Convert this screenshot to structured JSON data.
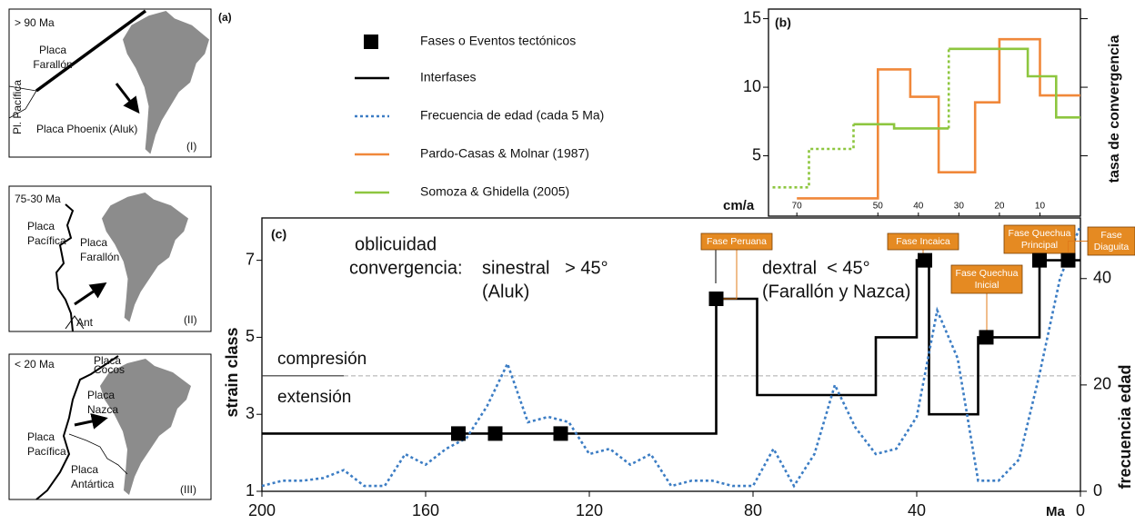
{
  "maps": {
    "label": "(a)",
    "frames": [
      {
        "age": "> 90 Ma",
        "plates": [
          [
            "Placa",
            "Farallón"
          ],
          [
            "Pl. Pacífica"
          ],
          [
            "Placa Phoenix (Aluk)"
          ]
        ],
        "numeral": "(I)"
      },
      {
        "age": "75-30 Ma",
        "plates": [
          [
            "Placa",
            "Pacífica"
          ],
          [
            "Placa",
            "Farallón"
          ],
          [
            "Ant"
          ]
        ],
        "numeral": "(II)"
      },
      {
        "age": "< 20 Ma",
        "plates": [
          [
            "Placa",
            "Cocos"
          ],
          [
            "Placa",
            "Nazca"
          ],
          [
            "Placa",
            "Pacífica"
          ],
          [
            "Placa",
            "Antártica"
          ]
        ],
        "numeral": "(III)"
      }
    ]
  },
  "chart_data": [
    {
      "type": "line",
      "label": "(b)",
      "y_label": "tasa de convergencia",
      "y_unit": "cm/a",
      "xlim": [
        77,
        0
      ],
      "xticks": [
        70,
        50,
        40,
        30,
        20,
        10
      ],
      "ylim": [
        0.6,
        15.7
      ],
      "yticks": [
        5,
        10,
        15
      ],
      "series": [
        {
          "name": "Pardo-Casas & Molnar (1987)",
          "color": "#f0883a",
          "x": [
            70,
            50,
            50,
            42,
            42,
            35,
            35,
            26,
            26,
            20,
            20,
            10,
            10,
            0
          ],
          "values": [
            1.9,
            1.9,
            11.3,
            11.3,
            9.3,
            9.3,
            3.8,
            3.8,
            8.9,
            8.9,
            13.5,
            13.5,
            9.4,
            9.4
          ]
        },
        {
          "name": "Somoza & Ghidella (2005)",
          "color": "#8dc63f",
          "x": [
            56,
            46,
            46,
            32.5,
            32.5,
            32.5,
            13,
            13,
            6,
            6,
            0
          ],
          "values": [
            7.3,
            7.3,
            7.0,
            7.0,
            null,
            12.8,
            12.8,
            10.8,
            10.8,
            7.8,
            7.8
          ]
        },
        {
          "color": "#8dc63f",
          "linestyle": "dotted",
          "x": [
            76,
            67,
            67,
            56,
            56,
            32.5,
            32.5,
            32.5
          ],
          "values": [
            2.7,
            2.7,
            5.5,
            5.5,
            7.3,
            null,
            7.0,
            12.8
          ]
        }
      ]
    },
    {
      "type": "line",
      "label": "(c)",
      "y_label": "strain class",
      "y2_label": "frecuencia edad",
      "x_label": "Ma",
      "xlim": [
        200,
        0
      ],
      "xticks": [
        200,
        160,
        120,
        80,
        40,
        0
      ],
      "ylim": [
        1,
        8.1
      ],
      "yticks": [
        1,
        3,
        5,
        7
      ],
      "y2lim": [
        0,
        51.4
      ],
      "y2ticks": [
        0,
        20,
        40
      ],
      "reference_line": 4,
      "annotations": [
        "oblicuidad",
        "convergencia:",
        "sinestral   > 45°",
        "(Aluk)",
        "dextral  < 45°",
        "(Farallón y Nazca)",
        "compresión",
        "extensión"
      ],
      "series": [
        {
          "name": "Interfases",
          "color": "#000000",
          "x": [
            200,
            89,
            89,
            79,
            79,
            50,
            50,
            40,
            40,
            37,
            37,
            25,
            25,
            10,
            10,
            0
          ],
          "values": [
            2.5,
            2.5,
            6,
            6,
            3.5,
            3.5,
            5,
            5,
            7,
            7,
            3,
            3,
            5,
            5,
            7,
            7
          ]
        },
        {
          "name": "Fases o Eventos tectónicos",
          "type": "scatter",
          "marker": "square",
          "color": "#000000",
          "x": [
            152,
            143,
            127,
            89,
            38,
            23,
            10,
            3
          ],
          "values": [
            2.5,
            2.5,
            2.5,
            6,
            7,
            5,
            7,
            7
          ],
          "labels": [
            null,
            null,
            null,
            [
              "Fase Peruana"
            ],
            [
              "Fase Incaica"
            ],
            [
              "Fase Quechua",
              "Inicial"
            ],
            [
              "Fase Quechua",
              "Principal"
            ],
            [
              "Fase",
              "Diaguita"
            ]
          ]
        },
        {
          "name": "Frecuencia de edad (cada 5 Ma)",
          "color": "#3c7dc4",
          "linestyle": "dotted",
          "axis": "y2",
          "x": [
            200,
            195,
            190,
            185,
            180,
            175,
            170,
            165,
            160,
            155,
            150,
            145,
            140,
            135,
            130,
            125,
            120,
            115,
            110,
            105,
            100,
            95,
            90,
            85,
            80,
            75,
            70,
            65,
            60,
            55,
            50,
            45,
            40,
            35,
            30,
            25,
            20,
            15,
            10,
            5,
            0
          ],
          "values": [
            1,
            2,
            2,
            2.5,
            4,
            1,
            1,
            7,
            5,
            8,
            10,
            16,
            24,
            13,
            14,
            13,
            7,
            8,
            5,
            7,
            1,
            2,
            2,
            1,
            1,
            8,
            1,
            7,
            20,
            12,
            7,
            8,
            14,
            34,
            25,
            2,
            2,
            6,
            22,
            40,
            50
          ]
        }
      ]
    }
  ]
}
